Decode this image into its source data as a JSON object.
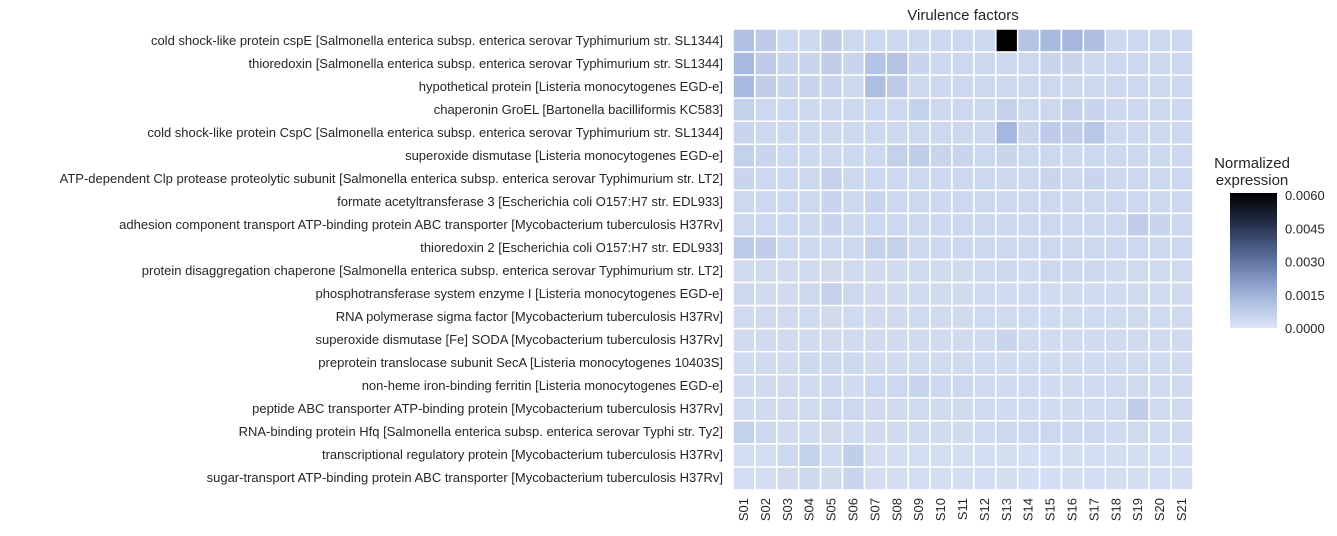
{
  "chart_data": {
    "type": "heatmap",
    "title": "Virulence factors",
    "columns": [
      "S01",
      "S02",
      "S03",
      "S04",
      "S05",
      "S06",
      "S07",
      "S08",
      "S09",
      "S10",
      "S11",
      "S12",
      "S13",
      "S14",
      "S15",
      "S16",
      "S17",
      "S18",
      "S19",
      "S20",
      "S21"
    ],
    "rows": [
      "cold shock-like protein cspE [Salmonella enterica subsp. enterica serovar Typhimurium str. SL1344]",
      "thioredoxin [Salmonella enterica subsp. enterica serovar Typhimurium str. SL1344]",
      "hypothetical protein [Listeria monocytogenes EGD-e]",
      "chaperonin GroEL [Bartonella bacilliformis KC583]",
      "cold shock-like protein CspC [Salmonella enterica subsp. enterica serovar Typhimurium str. SL1344]",
      "superoxide dismutase [Listeria monocytogenes EGD-e]",
      "ATP-dependent Clp protease proteolytic subunit [Salmonella enterica subsp. enterica serovar Typhimurium str. LT2]",
      "formate acetyltransferase 3 [Escherichia coli O157:H7 str. EDL933]",
      "adhesion component transport ATP-binding protein ABC transporter [Mycobacterium tuberculosis H37Rv]",
      "thioredoxin 2 [Escherichia coli O157:H7 str. EDL933]",
      "protein disaggregation chaperone [Salmonella enterica subsp. enterica serovar Typhimurium str. LT2]",
      "phosphotransferase system enzyme I [Listeria monocytogenes EGD-e]",
      "RNA polymerase sigma factor [Mycobacterium tuberculosis H37Rv]",
      "superoxide dismutase [Fe] SODA [Mycobacterium tuberculosis H37Rv]",
      "preprotein translocase subunit SecA [Listeria monocytogenes 10403S]",
      "non-heme iron-binding ferritin [Listeria monocytogenes EGD-e]",
      "peptide ABC transporter ATP-binding protein [Mycobacterium tuberculosis H37Rv]",
      "RNA-binding protein Hfq [Salmonella enterica subsp. enterica serovar Typhi str. Ty2]",
      "transcriptional regulatory protein [Mycobacterium tuberculosis H37Rv]",
      "sugar-transport ATP-binding protein ABC transporter [Mycobacterium tuberculosis H37Rv]"
    ],
    "values": [
      [
        0.0011,
        0.0008,
        0.0004,
        0.0004,
        0.0007,
        0.0004,
        0.0004,
        0.0004,
        0.0004,
        0.0004,
        0.0004,
        0.0004,
        0.0061,
        0.001,
        0.0013,
        0.0014,
        0.0012,
        0.0004,
        0.0004,
        0.0004,
        0.0004
      ],
      [
        0.0013,
        0.0008,
        0.0005,
        0.0005,
        0.0007,
        0.0005,
        0.001,
        0.001,
        0.0005,
        0.0004,
        0.0004,
        0.0004,
        0.0004,
        0.0004,
        0.0005,
        0.0005,
        0.0004,
        0.0004,
        0.0004,
        0.0004,
        0.0004
      ],
      [
        0.0013,
        0.0007,
        0.0005,
        0.0005,
        0.0005,
        0.0004,
        0.0012,
        0.0008,
        0.0004,
        0.0004,
        0.0004,
        0.0004,
        0.0004,
        0.0004,
        0.0004,
        0.0004,
        0.0004,
        0.0004,
        0.0004,
        0.0004,
        0.0004
      ],
      [
        0.0006,
        0.0004,
        0.0004,
        0.0004,
        0.0004,
        0.0004,
        0.0004,
        0.0004,
        0.0006,
        0.0004,
        0.0004,
        0.0004,
        0.0006,
        0.0004,
        0.0004,
        0.0006,
        0.0005,
        0.0004,
        0.0004,
        0.0004,
        0.0004
      ],
      [
        0.0005,
        0.0004,
        0.0004,
        0.0004,
        0.0004,
        0.0004,
        0.0004,
        0.0004,
        0.0004,
        0.0004,
        0.0004,
        0.0004,
        0.0014,
        0.0005,
        0.0008,
        0.0007,
        0.0009,
        0.0004,
        0.0004,
        0.0004,
        0.0004
      ],
      [
        0.0006,
        0.0005,
        0.0004,
        0.0004,
        0.0004,
        0.0004,
        0.0004,
        0.0006,
        0.0007,
        0.0005,
        0.0005,
        0.0004,
        0.0005,
        0.0004,
        0.0004,
        0.0004,
        0.0004,
        0.0004,
        0.0004,
        0.0004,
        0.0004
      ],
      [
        0.0005,
        0.0004,
        0.0004,
        0.0004,
        0.0006,
        0.0004,
        0.0004,
        0.0004,
        0.0004,
        0.0004,
        0.0004,
        0.0004,
        0.0004,
        0.0004,
        0.0005,
        0.0004,
        0.0005,
        0.0004,
        0.0004,
        0.0004,
        0.0004
      ],
      [
        0.0004,
        0.0004,
        0.0004,
        0.0004,
        0.0005,
        0.0004,
        0.0005,
        0.0004,
        0.0004,
        0.0004,
        0.0004,
        0.0004,
        0.0004,
        0.0004,
        0.0004,
        0.0004,
        0.0004,
        0.0004,
        0.0004,
        0.0004,
        0.0004
      ],
      [
        0.0004,
        0.0004,
        0.0004,
        0.0004,
        0.0005,
        0.0004,
        0.0004,
        0.0004,
        0.0004,
        0.0004,
        0.0004,
        0.0004,
        0.0004,
        0.0004,
        0.0004,
        0.0004,
        0.0004,
        0.0004,
        0.0007,
        0.0005,
        0.0004
      ],
      [
        0.0008,
        0.0007,
        0.0004,
        0.0004,
        0.0004,
        0.0004,
        0.0006,
        0.0006,
        0.0004,
        0.0004,
        0.0004,
        0.0004,
        0.0004,
        0.0004,
        0.0004,
        0.0004,
        0.0004,
        0.0004,
        0.0004,
        0.0004,
        0.0004
      ],
      [
        0.0003,
        0.0003,
        0.0003,
        0.0003,
        0.0003,
        0.0003,
        0.0003,
        0.0003,
        0.0003,
        0.0003,
        0.0003,
        0.0003,
        0.0004,
        0.0003,
        0.0004,
        0.0004,
        0.0004,
        0.0003,
        0.0003,
        0.0003,
        0.0003
      ],
      [
        0.0004,
        0.0003,
        0.0003,
        0.0004,
        0.0006,
        0.0004,
        0.0003,
        0.0003,
        0.0003,
        0.0003,
        0.0003,
        0.0003,
        0.0003,
        0.0003,
        0.0003,
        0.0003,
        0.0003,
        0.0003,
        0.0003,
        0.0003,
        0.0003
      ],
      [
        0.0003,
        0.0003,
        0.0003,
        0.0003,
        0.0003,
        0.0003,
        0.0003,
        0.0003,
        0.0003,
        0.0003,
        0.0003,
        0.0003,
        0.0003,
        0.0003,
        0.0003,
        0.0003,
        0.0003,
        0.0003,
        0.0003,
        0.0003,
        0.0003
      ],
      [
        0.0003,
        0.0003,
        0.0003,
        0.0003,
        0.0003,
        0.0003,
        0.0003,
        0.0003,
        0.0003,
        0.0003,
        0.0003,
        0.0003,
        0.0005,
        0.0003,
        0.0003,
        0.0003,
        0.0003,
        0.0003,
        0.0003,
        0.0003,
        0.0003
      ],
      [
        0.0003,
        0.0003,
        0.0003,
        0.0004,
        0.0004,
        0.0004,
        0.0003,
        0.0003,
        0.0003,
        0.0003,
        0.0003,
        0.0003,
        0.0003,
        0.0003,
        0.0003,
        0.0003,
        0.0003,
        0.0003,
        0.0003,
        0.0003,
        0.0003
      ],
      [
        0.0003,
        0.0003,
        0.0003,
        0.0003,
        0.0004,
        0.0003,
        0.0004,
        0.0004,
        0.0005,
        0.0004,
        0.0004,
        0.0003,
        0.0003,
        0.0003,
        0.0003,
        0.0003,
        0.0003,
        0.0003,
        0.0003,
        0.0003,
        0.0003
      ],
      [
        0.0003,
        0.0003,
        0.0003,
        0.0003,
        0.0004,
        0.0004,
        0.0003,
        0.0003,
        0.0003,
        0.0003,
        0.0003,
        0.0003,
        0.0003,
        0.0003,
        0.0003,
        0.0003,
        0.0003,
        0.0003,
        0.0007,
        0.0003,
        0.0003
      ],
      [
        0.0006,
        0.0004,
        0.0003,
        0.0003,
        0.0003,
        0.0003,
        0.0003,
        0.0003,
        0.0003,
        0.0003,
        0.0003,
        0.0003,
        0.0004,
        0.0004,
        0.0004,
        0.0004,
        0.0004,
        0.0003,
        0.0003,
        0.0003,
        0.0003
      ],
      [
        0.0002,
        0.0002,
        0.0004,
        0.0006,
        0.0003,
        0.0007,
        0.0002,
        0.0002,
        0.0002,
        0.0002,
        0.0002,
        0.0002,
        0.0002,
        0.0002,
        0.0002,
        0.0002,
        0.0002,
        0.0002,
        0.0002,
        0.0002,
        0.0002
      ],
      [
        0.0002,
        0.0002,
        0.0003,
        0.0004,
        0.0003,
        0.0005,
        0.0002,
        0.0002,
        0.0002,
        0.0002,
        0.0002,
        0.0002,
        0.0002,
        0.0002,
        0.0002,
        0.0002,
        0.0002,
        0.0002,
        0.0002,
        0.0002,
        0.0002
      ]
    ],
    "colorbar": {
      "title": "Normalized expression",
      "range": [
        0.0,
        0.0061
      ],
      "ticks": [
        "0.0060",
        "0.0045",
        "0.0030",
        "0.0015",
        "0.0000"
      ],
      "tick_values": [
        0.006,
        0.0045,
        0.003,
        0.0015,
        0.0
      ],
      "color_low": "#dce5f5",
      "color_high": "#000000"
    }
  }
}
